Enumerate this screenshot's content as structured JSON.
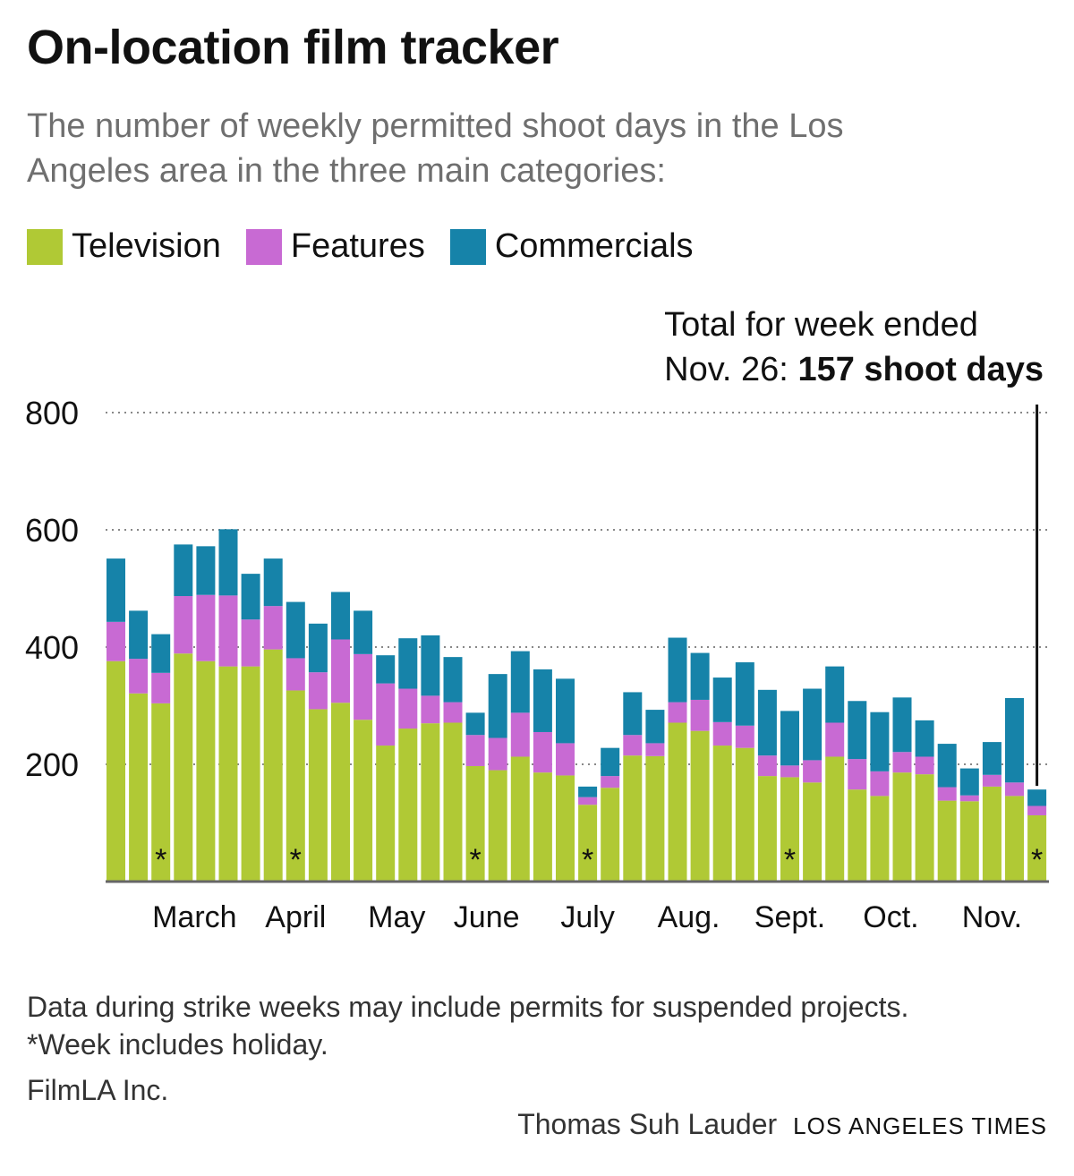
{
  "title": "On-location film tracker",
  "subtitle": "The number of weekly permitted shoot days in the Los Angeles area in the three main categories:",
  "annotation": {
    "line1": "Total for week ended",
    "line2_prefix": "Nov. 26: ",
    "line2_strong": "157 shoot days"
  },
  "footnote": {
    "line1": "Data during strike weeks may include permits for suspended projects.",
    "line2": "*Week includes holiday."
  },
  "source": "FilmLA Inc.",
  "credit": {
    "author": "Thomas Suh Lauder",
    "publication": "LOS ANGELES TIMES"
  },
  "colors": {
    "television": "#b0c935",
    "features": "#c86ad3",
    "commercials": "#1683a9",
    "grid": "#888888",
    "axis": "#666666"
  },
  "chart_data": {
    "type": "bar",
    "stacked": true,
    "legend": [
      "Television",
      "Features",
      "Commercials"
    ],
    "yticks": [
      200,
      400,
      600,
      800
    ],
    "ylim": [
      0,
      800
    ],
    "grid": true,
    "month_labels": [
      "March",
      "April",
      "May",
      "June",
      "July",
      "Aug.",
      "Sept.",
      "Oct.",
      "Nov."
    ],
    "month_label_weeks": [
      3.5,
      8,
      12.5,
      16.5,
      21,
      25.5,
      30,
      34.5,
      39
    ],
    "holiday_marker": "*",
    "holiday_weeks": [
      2,
      8,
      16,
      21,
      30,
      41
    ],
    "series": [
      {
        "name": "Television",
        "values": [
          376,
          321,
          304,
          389,
          376,
          367,
          367,
          396,
          326,
          294,
          305,
          276,
          232,
          261,
          270,
          271,
          197,
          190,
          213,
          186,
          181,
          131,
          160,
          215,
          214,
          271,
          257,
          232,
          228,
          180,
          178,
          169,
          213,
          157,
          146,
          186,
          183,
          138,
          137,
          162,
          146,
          113
        ]
      },
      {
        "name": "Features",
        "values": [
          67,
          59,
          52,
          98,
          113,
          121,
          80,
          74,
          55,
          63,
          108,
          112,
          106,
          68,
          47,
          35,
          53,
          55,
          75,
          69,
          55,
          13,
          20,
          35,
          22,
          35,
          53,
          40,
          38,
          35,
          20,
          38,
          58,
          52,
          42,
          35,
          30,
          23,
          10,
          20,
          23,
          16
        ]
      },
      {
        "name": "Commercials",
        "values": [
          108,
          82,
          66,
          88,
          83,
          113,
          78,
          81,
          96,
          83,
          81,
          74,
          48,
          86,
          103,
          77,
          38,
          109,
          105,
          107,
          110,
          18,
          48,
          73,
          57,
          110,
          80,
          76,
          108,
          112,
          93,
          122,
          96,
          99,
          101,
          93,
          62,
          74,
          46,
          56,
          144,
          28
        ]
      }
    ]
  }
}
